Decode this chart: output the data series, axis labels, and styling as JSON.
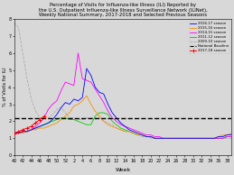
{
  "title": "Percentage of Visits for Influenza-like Illness (ILI) Reported by\nthe U.S. Outpatient Influenza-like Illness Surveillance Network (ILINet),\nWeekly National Summary, 2017-2018 and Selected Previous Seasons",
  "xlabel": "Week",
  "ylabel": "% of Visits for ILI",
  "ylim": [
    0,
    8
  ],
  "baseline": 2.2,
  "bg_color": "#D8D8D8",
  "legend": [
    {
      "label": "2016-17 season",
      "color": "#0000FF"
    },
    {
      "label": "2015-16 season",
      "color": "#FF8C00"
    },
    {
      "label": "2014-15 season",
      "color": "#FF00FF"
    },
    {
      "label": "2011-12 season",
      "color": "#00CC00"
    },
    {
      "label": "2009-10 season",
      "color": "#AAAAAA"
    },
    {
      "label": "National Baseline",
      "color": "#000000"
    },
    {
      "label": "2017-18 season",
      "color": "#FF0000"
    }
  ],
  "season_2016_17": {
    "weeks": [
      40,
      41,
      42,
      43,
      44,
      45,
      46,
      47,
      48,
      49,
      50,
      51,
      52,
      1,
      2,
      3,
      4,
      5,
      6,
      7,
      8,
      9,
      10,
      11,
      12,
      13,
      14,
      15,
      16,
      17,
      18,
      19,
      20,
      21,
      22,
      23,
      24,
      25,
      26,
      27,
      28,
      29,
      30,
      31,
      32,
      33,
      34,
      35,
      36,
      37,
      38,
      39
    ],
    "values": [
      1.3,
      1.3,
      1.4,
      1.4,
      1.5,
      1.6,
      1.7,
      1.8,
      1.9,
      2.1,
      2.4,
      2.8,
      3.1,
      3.0,
      3.3,
      3.2,
      3.4,
      5.1,
      4.7,
      4.0,
      3.7,
      3.6,
      3.0,
      2.5,
      2.2,
      1.9,
      1.7,
      1.5,
      1.4,
      1.3,
      1.2,
      1.1,
      1.1,
      1.0,
      1.0,
      1.0,
      1.0,
      1.0,
      1.0,
      1.0,
      1.0,
      1.0,
      1.0,
      1.0,
      1.0,
      1.0,
      1.0,
      1.0,
      1.1,
      1.1,
      1.2,
      1.2
    ]
  },
  "season_2015_16": {
    "weeks": [
      40,
      41,
      42,
      43,
      44,
      45,
      46,
      47,
      48,
      49,
      50,
      51,
      52,
      1,
      2,
      3,
      4,
      5,
      6,
      7,
      8,
      9,
      10,
      11,
      12,
      13,
      14,
      15,
      16,
      17,
      18,
      19,
      20,
      21,
      22,
      23,
      24,
      25,
      26,
      27,
      28,
      29,
      30,
      31,
      32,
      33,
      34,
      35,
      36,
      37,
      38,
      39
    ],
    "values": [
      1.3,
      1.3,
      1.3,
      1.4,
      1.5,
      1.5,
      1.6,
      1.6,
      1.7,
      1.8,
      1.9,
      2.1,
      2.3,
      2.5,
      2.9,
      3.0,
      3.2,
      3.5,
      3.0,
      2.6,
      2.3,
      2.0,
      1.8,
      1.7,
      1.6,
      1.5,
      1.4,
      1.4,
      1.3,
      1.2,
      1.2,
      1.1,
      1.1,
      1.0,
      1.0,
      1.0,
      1.0,
      1.0,
      1.0,
      1.0,
      1.0,
      1.0,
      1.0,
      1.0,
      1.0,
      1.0,
      1.0,
      1.0,
      1.1,
      1.2,
      1.2,
      1.3
    ]
  },
  "season_2014_15": {
    "weeks": [
      40,
      41,
      42,
      43,
      44,
      45,
      46,
      47,
      48,
      49,
      50,
      51,
      52,
      1,
      2,
      3,
      4,
      5,
      6,
      7,
      8,
      9,
      10,
      11,
      12,
      13,
      14,
      15,
      16,
      17,
      18,
      19,
      20,
      21,
      22,
      23,
      24,
      25,
      26,
      27,
      28,
      29,
      30,
      31,
      32,
      33,
      34,
      35,
      36,
      37,
      38,
      39
    ],
    "values": [
      1.3,
      1.3,
      1.4,
      1.4,
      1.5,
      1.7,
      1.9,
      2.2,
      2.7,
      3.0,
      3.2,
      3.8,
      4.3,
      4.2,
      4.1,
      6.0,
      4.5,
      4.4,
      4.3,
      3.9,
      3.5,
      3.1,
      2.6,
      2.2,
      2.0,
      1.8,
      1.7,
      1.6,
      1.5,
      1.4,
      1.3,
      1.2,
      1.2,
      1.1,
      1.1,
      1.0,
      1.0,
      1.0,
      1.0,
      1.0,
      1.0,
      1.0,
      1.0,
      1.0,
      1.0,
      1.0,
      1.0,
      1.0,
      1.0,
      1.0,
      1.1,
      1.1
    ]
  },
  "season_2011_12": {
    "weeks": [
      40,
      41,
      42,
      43,
      44,
      45,
      46,
      47,
      48,
      49,
      50,
      51,
      52,
      1,
      2,
      3,
      4,
      5,
      6,
      7,
      8,
      9,
      10,
      11,
      12,
      13,
      14,
      15,
      16,
      17,
      18,
      19,
      20,
      21,
      22,
      23,
      24,
      25,
      26,
      27,
      28,
      29,
      30,
      31,
      32,
      33,
      34,
      35,
      36,
      37,
      38,
      39
    ],
    "values": [
      1.3,
      1.3,
      1.4,
      1.4,
      1.5,
      1.6,
      1.7,
      1.8,
      1.9,
      2.0,
      2.1,
      2.2,
      2.2,
      2.1,
      2.1,
      2.0,
      1.9,
      1.8,
      1.8,
      2.3,
      2.5,
      2.5,
      2.4,
      2.0,
      1.8,
      1.6,
      1.5,
      1.4,
      1.3,
      1.2,
      1.2,
      1.1,
      1.1,
      1.0,
      1.0,
      1.0,
      1.0,
      1.0,
      1.0,
      1.0,
      1.0,
      1.0,
      1.0,
      1.0,
      1.0,
      1.0,
      1.0,
      1.0,
      1.0,
      1.0,
      1.1,
      1.1
    ]
  },
  "season_2009_10": {
    "weeks": [
      40,
      41,
      42,
      43,
      44,
      45,
      46,
      47,
      48,
      49,
      50,
      51,
      52,
      1,
      2,
      3,
      4,
      5,
      6,
      7,
      8,
      9,
      10,
      11,
      12,
      13,
      14,
      15,
      16,
      17,
      18,
      19,
      20,
      21,
      22,
      23,
      24,
      25,
      26,
      27,
      28,
      29,
      30,
      31,
      32,
      33,
      34,
      35,
      36,
      37,
      38,
      39
    ],
    "values": [
      7.8,
      7.5,
      6.0,
      4.5,
      3.3,
      2.6,
      2.2,
      2.2,
      2.2,
      2.4,
      2.7,
      2.8,
      2.5,
      2.2,
      2.2,
      2.1,
      2.1,
      2.2,
      2.2,
      2.2,
      2.2,
      2.0,
      1.9,
      1.8,
      1.6,
      1.5,
      1.4,
      1.4,
      1.3,
      1.2,
      1.1,
      1.1,
      1.0,
      1.0,
      1.0,
      1.0,
      1.0,
      1.0,
      1.0,
      1.0,
      1.0,
      1.0,
      1.0,
      1.0,
      1.0,
      1.0,
      1.0,
      1.0,
      1.0,
      1.0,
      1.0,
      1.0
    ]
  },
  "season_2017_18": {
    "weeks": [
      40,
      41,
      42,
      43,
      44,
      45,
      46,
      47
    ],
    "values": [
      1.3,
      1.4,
      1.5,
      1.6,
      1.7,
      1.9,
      2.1,
      2.3
    ]
  },
  "xtick_labels": [
    "40",
    "42",
    "44",
    "46",
    "48",
    "50",
    "52",
    "2",
    "4",
    "6",
    "8",
    "10",
    "12",
    "14",
    "16",
    "18",
    "20",
    "22",
    "24",
    "26",
    "28",
    "30",
    "32",
    "34",
    "36",
    "38"
  ],
  "xtick_positions": [
    40,
    42,
    44,
    46,
    48,
    50,
    52,
    2,
    4,
    6,
    8,
    10,
    12,
    14,
    16,
    18,
    20,
    22,
    24,
    26,
    28,
    30,
    32,
    34,
    36,
    38
  ]
}
